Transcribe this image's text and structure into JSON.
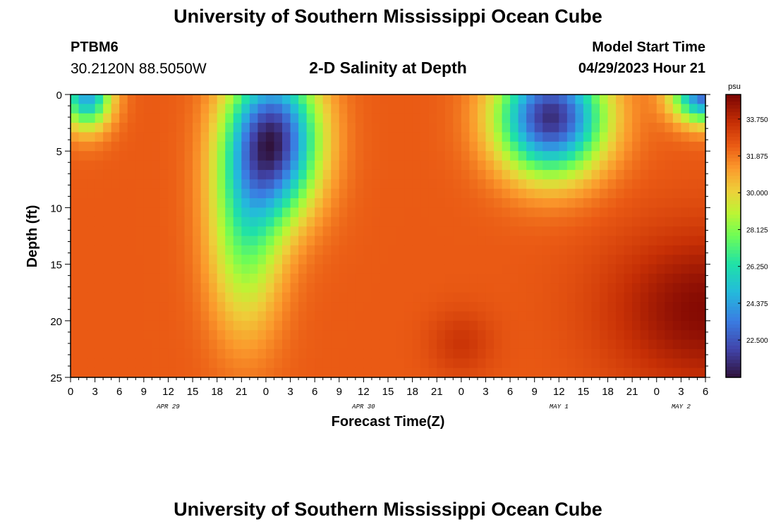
{
  "header": {
    "title": "University of Southern Mississippi Ocean Cube",
    "footer_title": "University of Southern Mississippi Ocean Cube",
    "station_id": "PTBM6",
    "station_coords": "30.2120N  88.5050W",
    "plot_title": "2-D Salinity at Depth",
    "model_start_label": "Model Start Time",
    "model_start_time": "04/29/2023 Hour 21"
  },
  "chart_data": {
    "type": "heatmap",
    "title": "2-D Salinity at Depth",
    "xlabel": "Forecast Time(Z)",
    "ylabel": "Depth (ft)",
    "x_hours_range": [
      0,
      78
    ],
    "x_tick_hours": [
      0,
      3,
      6,
      9,
      12,
      15,
      18,
      21,
      24,
      27,
      30,
      33,
      36,
      39,
      42,
      45,
      48,
      51,
      54,
      57,
      60,
      63,
      66,
      69,
      72,
      75,
      78
    ],
    "x_tick_labels": [
      "0",
      "3",
      "6",
      "9",
      "12",
      "15",
      "18",
      "21",
      "0",
      "3",
      "6",
      "9",
      "12",
      "15",
      "18",
      "21",
      "0",
      "3",
      "6",
      "9",
      "12",
      "15",
      "18",
      "21",
      "0",
      "3",
      "6"
    ],
    "date_labels": [
      {
        "hour": 12,
        "text": "APR 29"
      },
      {
        "hour": 36,
        "text": "APR 30"
      },
      {
        "hour": 60,
        "text": "MAY 1"
      },
      {
        "hour": 75,
        "text": "MAY 2"
      }
    ],
    "ylim": [
      0,
      25
    ],
    "y_ticks": [
      0,
      5,
      10,
      15,
      20,
      25
    ],
    "y_tick_labels": [
      "0",
      "5",
      "10",
      "15",
      "20",
      "25"
    ],
    "colorbar": {
      "unit": "psu",
      "range": [
        20.6,
        35.0
      ],
      "tick_values": [
        33.75,
        31.875,
        30.0,
        28.125,
        26.25,
        24.375,
        22.5
      ],
      "tick_labels": [
        "33.750",
        "31.875",
        "30.000",
        "28.125",
        "26.250",
        "24.375",
        "22.500"
      ]
    },
    "field_features": [
      {
        "type": "background",
        "value": 32.4
      },
      {
        "type": "fresh_lens",
        "hour": 25,
        "depth": 4,
        "sigma_hours": 5.5,
        "sigma_depth": 6.5,
        "amplitude": -10.5
      },
      {
        "type": "fresh_wedge",
        "hour": 21.5,
        "depth": 12,
        "sigma_hours": 4.5,
        "sigma_depth": 9.0,
        "amplitude": -4.5
      },
      {
        "type": "fresh_surface",
        "hour": 2,
        "depth": 0,
        "sigma_hours": 3.0,
        "sigma_depth": 3.0,
        "amplitude": -8.0
      },
      {
        "type": "fresh_lens",
        "hour": 59,
        "depth": 2,
        "sigma_hours": 6.5,
        "sigma_depth": 5.0,
        "amplitude": -11.0
      },
      {
        "type": "fresh_surface",
        "hour": 78,
        "depth": 0,
        "sigma_hours": 4.0,
        "sigma_depth": 2.5,
        "amplitude": -9.5
      },
      {
        "type": "salty_core",
        "hour": 78,
        "depth": 19,
        "sigma_hours": 12,
        "sigma_depth": 7,
        "amplitude": 2.4
      },
      {
        "type": "salty_core",
        "hour": 48,
        "depth": 22,
        "sigma_hours": 4,
        "sigma_depth": 3,
        "amplitude": 1.0
      }
    ]
  }
}
